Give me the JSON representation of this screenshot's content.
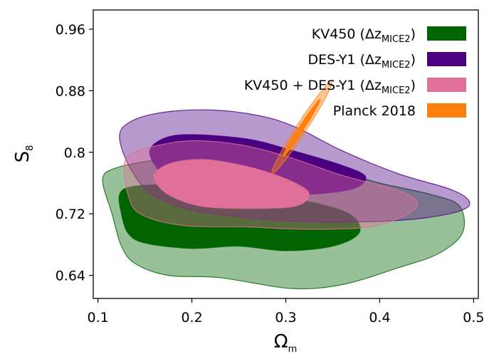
{
  "chart_data": {
    "type": "area",
    "xlabel": "Ω",
    "xlabel_sub": "m",
    "ylabel": "S",
    "ylabel_sub": "8",
    "xlim": [
      0.095,
      0.505
    ],
    "ylim": [
      0.61,
      0.985
    ],
    "xticks": [
      0.1,
      0.2,
      0.3,
      0.4,
      0.5
    ],
    "yticks": [
      0.64,
      0.72,
      0.8,
      0.88,
      0.96
    ],
    "xtick_labels": [
      "0.1",
      "0.2",
      "0.3",
      "0.4",
      "0.5"
    ],
    "ytick_labels": [
      "0.64",
      "0.72",
      "0.8",
      "0.88",
      "0.96"
    ],
    "legend_position": "top-right",
    "series": [
      {
        "name": "KV450 (Δz",
        "name_sub": "MICE2",
        "name_suffix": ")",
        "color": "#006400",
        "contours": [
          {
            "level": "95%",
            "opacity": 0.4,
            "points": [
              [
                0.105,
                0.765
              ],
              [
                0.115,
                0.72
              ],
              [
                0.125,
                0.678
              ],
              [
                0.14,
                0.655
              ],
              [
                0.175,
                0.64
              ],
              [
                0.23,
                0.637
              ],
              [
                0.305,
                0.623
              ],
              [
                0.36,
                0.628
              ],
              [
                0.42,
                0.65
              ],
              [
                0.462,
                0.668
              ],
              [
                0.488,
                0.695
              ],
              [
                0.485,
                0.73
              ],
              [
                0.455,
                0.745
              ],
              [
                0.4,
                0.76
              ],
              [
                0.33,
                0.783
              ],
              [
                0.26,
                0.795
              ],
              [
                0.2,
                0.797
              ],
              [
                0.16,
                0.79
              ],
              [
                0.12,
                0.78
              ]
            ]
          },
          {
            "level": "68%",
            "opacity": 1.0,
            "points": [
              [
                0.123,
                0.745
              ],
              [
                0.125,
                0.72
              ],
              [
                0.132,
                0.695
              ],
              [
                0.15,
                0.682
              ],
              [
                0.2,
                0.675
              ],
              [
                0.25,
                0.678
              ],
              [
                0.3,
                0.672
              ],
              [
                0.35,
                0.678
              ],
              [
                0.378,
                0.695
              ],
              [
                0.37,
                0.718
              ],
              [
                0.335,
                0.733
              ],
              [
                0.28,
                0.745
              ],
              [
                0.22,
                0.755
              ],
              [
                0.17,
                0.758
              ],
              [
                0.135,
                0.755
              ]
            ]
          }
        ]
      },
      {
        "name": "DES-Y1 (Δz",
        "name_sub": "MICE2",
        "name_suffix": ")",
        "color": "#4B0082",
        "contours": [
          {
            "level": "95%",
            "opacity": 0.4,
            "points": [
              [
                0.123,
                0.82
              ],
              [
                0.135,
                0.778
              ],
              [
                0.158,
                0.745
              ],
              [
                0.2,
                0.725
              ],
              [
                0.26,
                0.715
              ],
              [
                0.32,
                0.71
              ],
              [
                0.395,
                0.71
              ],
              [
                0.45,
                0.715
              ],
              [
                0.488,
                0.725
              ],
              [
                0.495,
                0.737
              ],
              [
                0.475,
                0.752
              ],
              [
                0.42,
                0.772
              ],
              [
                0.36,
                0.802
              ],
              [
                0.31,
                0.833
              ],
              [
                0.27,
                0.848
              ],
              [
                0.22,
                0.855
              ],
              [
                0.17,
                0.852
              ],
              [
                0.135,
                0.84
              ]
            ]
          },
          {
            "level": "68%",
            "opacity": 1.0,
            "points": [
              [
                0.155,
                0.8
              ],
              [
                0.17,
                0.77
              ],
              [
                0.2,
                0.752
              ],
              [
                0.26,
                0.745
              ],
              [
                0.32,
                0.745
              ],
              [
                0.37,
                0.752
              ],
              [
                0.385,
                0.768
              ],
              [
                0.36,
                0.783
              ],
              [
                0.305,
                0.803
              ],
              [
                0.26,
                0.817
              ],
              [
                0.2,
                0.823
              ],
              [
                0.17,
                0.818
              ]
            ]
          }
        ]
      },
      {
        "name": "KV450 + DES-Y1 (Δz",
        "name_sub": "MICE2",
        "name_suffix": ")",
        "color": "#E0709A",
        "contours": [
          {
            "level": "95%",
            "opacity": 0.4,
            "points": [
              [
                0.128,
                0.782
              ],
              [
                0.132,
                0.745
              ],
              [
                0.145,
                0.72
              ],
              [
                0.19,
                0.705
              ],
              [
                0.26,
                0.703
              ],
              [
                0.32,
                0.7
              ],
              [
                0.39,
                0.703
              ],
              [
                0.43,
                0.72
              ],
              [
                0.44,
                0.735
              ],
              [
                0.42,
                0.75
              ],
              [
                0.36,
                0.77
              ],
              [
                0.3,
                0.795
              ],
              [
                0.25,
                0.81
              ],
              [
                0.2,
                0.815
              ],
              [
                0.16,
                0.808
              ],
              [
                0.135,
                0.798
              ]
            ]
          },
          {
            "level": "68%",
            "opacity": 1.0,
            "points": [
              [
                0.16,
                0.765
              ],
              [
                0.175,
                0.745
              ],
              [
                0.21,
                0.73
              ],
              [
                0.26,
                0.727
              ],
              [
                0.31,
                0.73
              ],
              [
                0.325,
                0.745
              ],
              [
                0.31,
                0.76
              ],
              [
                0.27,
                0.778
              ],
              [
                0.22,
                0.79
              ],
              [
                0.185,
                0.788
              ],
              [
                0.165,
                0.778
              ]
            ]
          }
        ]
      },
      {
        "name": "Planck 2018",
        "color": "#FF7F0E",
        "contours": [
          {
            "level": "95%",
            "opacity": 0.45,
            "ellipse": {
              "cx": 0.317,
              "cy": 0.832,
              "rx": 0.058,
              "ry": 0.0055,
              "angle_deg": -57
            }
          },
          {
            "level": "68%",
            "opacity": 1.0,
            "ellipse": {
              "cx": 0.317,
              "cy": 0.832,
              "rx": 0.036,
              "ry": 0.0028,
              "angle_deg": -57
            }
          }
        ]
      }
    ]
  }
}
